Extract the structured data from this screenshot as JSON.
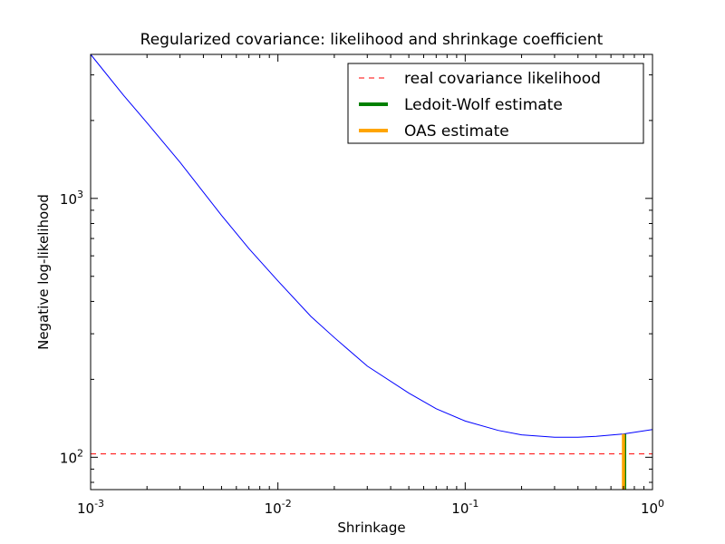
{
  "chart_data": {
    "type": "line",
    "title": "Regularized covariance: likelihood and shrinkage coefficient",
    "xlabel": "Shrinkage",
    "ylabel": "Negative log-likelihood",
    "xscale": "log",
    "yscale": "log",
    "xlim": [
      0.001,
      1.0
    ],
    "ylim": [
      75,
      3600
    ],
    "x_ticks": [
      {
        "value": 0.001,
        "base": "10",
        "exp": "-3"
      },
      {
        "value": 0.01,
        "base": "10",
        "exp": "-2"
      },
      {
        "value": 0.1,
        "base": "10",
        "exp": "-1"
      },
      {
        "value": 1.0,
        "base": "10",
        "exp": "0"
      }
    ],
    "y_ticks": [
      {
        "value": 100,
        "base": "10",
        "exp": "2"
      },
      {
        "value": 1000,
        "base": "10",
        "exp": "3"
      }
    ],
    "grid": false,
    "legend_position": "upper-right",
    "series": [
      {
        "color": "#0000ff",
        "style": "solid",
        "x": [
          0.001,
          0.0015,
          0.002,
          0.003,
          0.005,
          0.007,
          0.01,
          0.015,
          0.02,
          0.03,
          0.05,
          0.07,
          0.1,
          0.15,
          0.2,
          0.3,
          0.4,
          0.5,
          0.7,
          1.0
        ],
        "y": [
          3600,
          2500,
          1960,
          1380,
          860,
          640,
          480,
          350,
          290,
          225,
          177,
          154,
          138,
          127,
          122,
          119.5,
          119.5,
          120.5,
          123,
          128
        ]
      },
      {
        "name": "real covariance likelihood",
        "color": "#ff0000",
        "style": "dashed",
        "y_constant": 103
      }
    ],
    "vlines": [
      {
        "name": "Ledoit-Wolf estimate",
        "color": "#008000",
        "x": 0.71,
        "y_from": 75,
        "y_to": 123
      },
      {
        "name": "OAS estimate",
        "color": "#ffa500",
        "x": 0.7,
        "y_from": 75,
        "y_to": 123
      }
    ]
  }
}
